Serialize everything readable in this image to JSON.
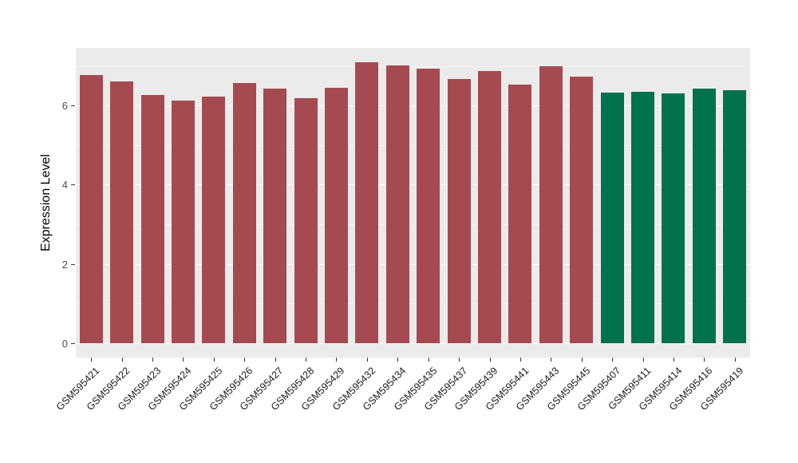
{
  "figure": {
    "background": "#FFFFFF"
  },
  "chart_data": {
    "type": "bar",
    "title": "",
    "xlabel": "",
    "ylabel": "Expression Level",
    "legend": "none",
    "panel_background": "#EBEBEB",
    "grid_major_color": "#FFFFFF",
    "grid_minor_color": "#F4F4F4",
    "yticks": [
      0,
      2,
      4,
      6
    ],
    "minor_yticks": [
      1,
      3,
      5,
      7
    ],
    "ylim": [
      -0.37,
      7.46
    ],
    "categories": [
      "GSM595421",
      "GSM595422",
      "GSM595423",
      "GSM595424",
      "GSM595425",
      "GSM595426",
      "GSM595427",
      "GSM595428",
      "GSM595429",
      "GSM595432",
      "GSM595434",
      "GSM595435",
      "GSM595437",
      "GSM595439",
      "GSM595441",
      "GSM595443",
      "GSM595445",
      "GSM595407",
      "GSM595411",
      "GSM595414",
      "GSM595416",
      "GSM595419"
    ],
    "values": [
      6.78,
      6.61,
      6.27,
      6.13,
      6.23,
      6.58,
      6.43,
      6.19,
      6.46,
      7.1,
      7.02,
      6.93,
      6.68,
      6.87,
      6.53,
      7.0,
      6.73,
      6.33,
      6.34,
      6.3,
      6.43,
      6.39
    ],
    "bar_groups": [
      "group1",
      "group1",
      "group1",
      "group1",
      "group1",
      "group1",
      "group1",
      "group1",
      "group1",
      "group1",
      "group1",
      "group1",
      "group1",
      "group1",
      "group1",
      "group1",
      "group1",
      "group2",
      "group2",
      "group2",
      "group2",
      "group2"
    ],
    "group_colors": {
      "group1": "#A64A51",
      "group2": "#00724C"
    }
  }
}
